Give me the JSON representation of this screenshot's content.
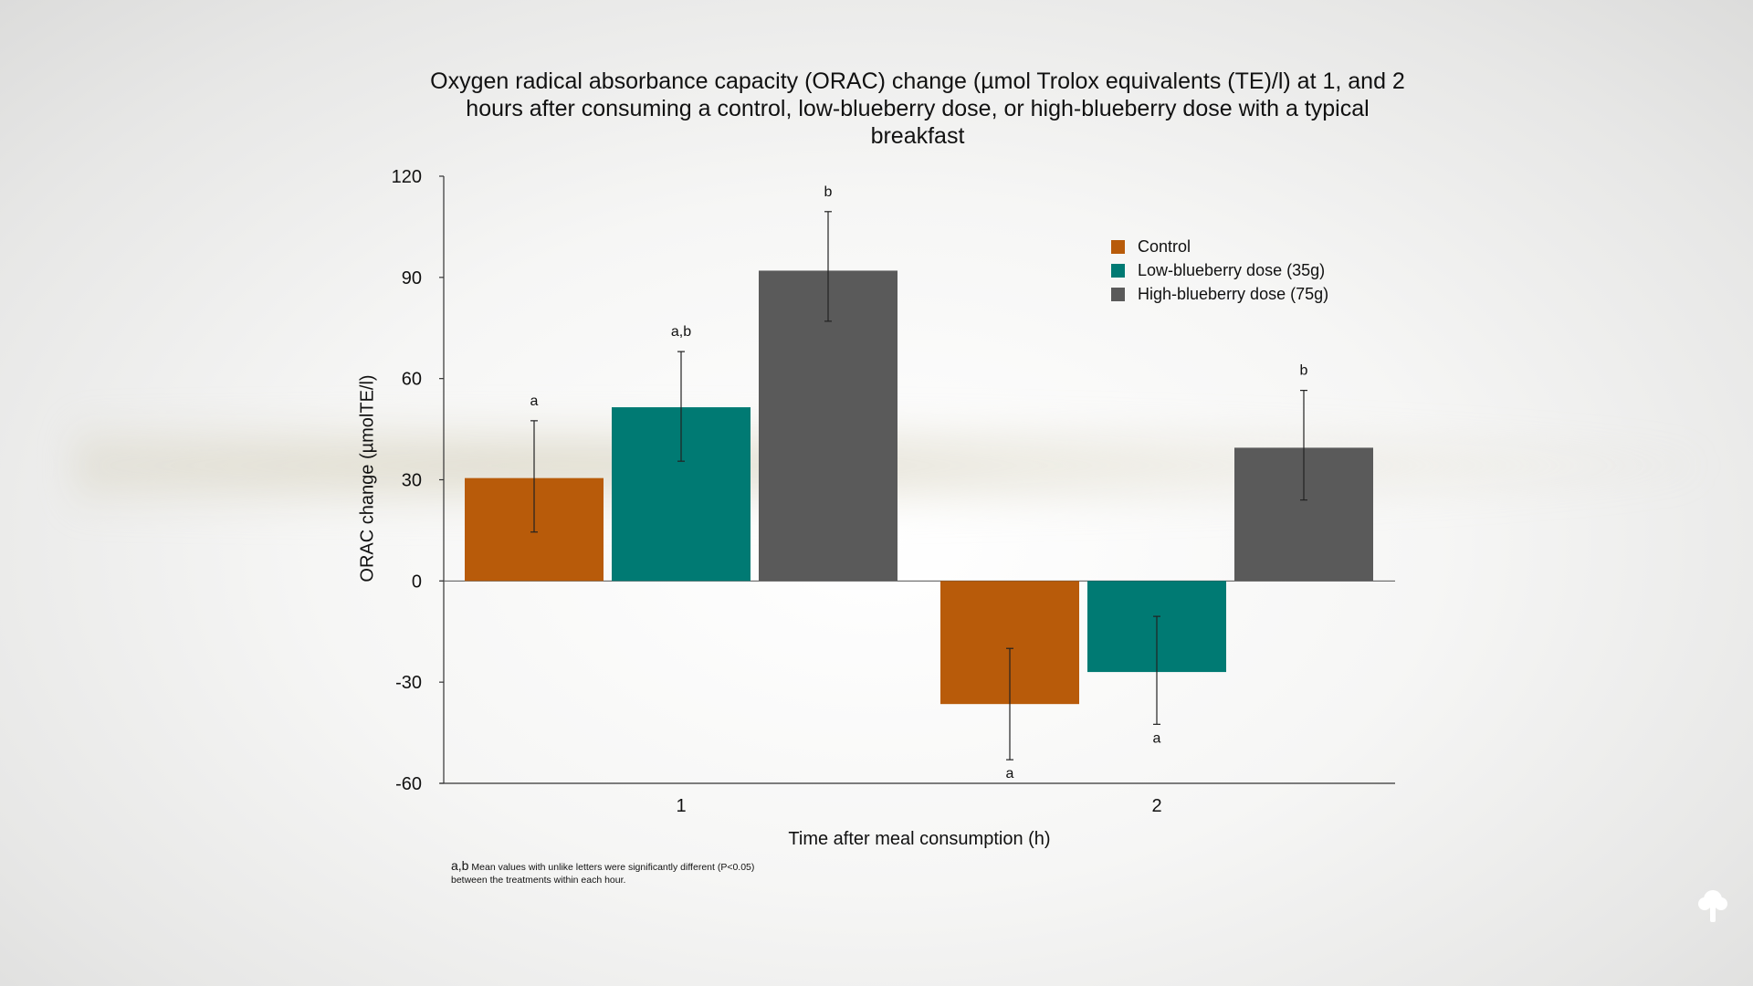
{
  "chart_data": {
    "type": "bar",
    "title": "Oxygen radical absorbance capacity (ORAC) change (µmol Trolox equivalents (TE)/l) at 1, and 2 hours after consuming a control, low-blueberry dose, or high-blueberry dose with a typical breakfast",
    "xlabel": "Time after meal consumption (h)",
    "ylabel": "ORAC change (µmolTE/l)",
    "categories": [
      "1",
      "2"
    ],
    "ylim": [
      -60,
      120
    ],
    "yticks": [
      "120",
      "90",
      "60",
      "30",
      "0",
      "-30",
      "-60"
    ],
    "legend_position": "top-right",
    "series": [
      {
        "name": "Control",
        "color": "#b85b0a",
        "values": [
          30.5,
          -36.5
        ],
        "error_low": [
          14.5,
          -53
        ],
        "error_high": [
          47.5,
          -20
        ],
        "letters": [
          "a",
          "a"
        ]
      },
      {
        "name": "Low-blueberry dose (35g)",
        "color": "#007a73",
        "values": [
          51.5,
          -27
        ],
        "error_low": [
          35.5,
          -42.5
        ],
        "error_high": [
          68,
          -10.5
        ],
        "letters": [
          "a,b",
          "a"
        ]
      },
      {
        "name": "High-blueberry dose (75g)",
        "color": "#5a5a5a",
        "values": [
          92,
          39.5
        ],
        "error_low": [
          77,
          24
        ],
        "error_high": [
          109.5,
          56.5
        ],
        "letters": [
          "b",
          "b"
        ]
      }
    ]
  },
  "footnote": {
    "letters": "a,b",
    "text_line1": "Mean values with unlike letters were significantly different (P<0.05)",
    "text_line2": "between the treatments within each hour."
  },
  "logo_icon": "tree-icon"
}
